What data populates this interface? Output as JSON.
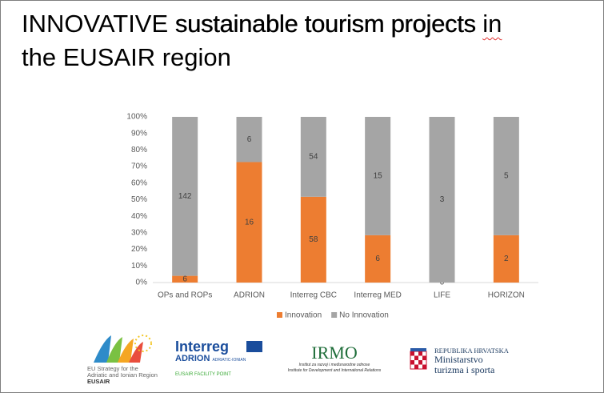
{
  "header": {
    "title_parts": [
      "INNOVATIVE",
      "sustainable tourism projects",
      "in",
      "the EUSAIR region"
    ]
  },
  "chart_data": {
    "type": "bar",
    "stacked": "percent",
    "categories": [
      "OPs and ROPs",
      "ADRION",
      "Interreg CBC",
      "Interreg MED",
      "LIFE",
      "HORIZON"
    ],
    "series": [
      {
        "name": "Innovation",
        "color": "#ed7d31",
        "values": [
          6,
          16,
          58,
          6,
          0,
          2
        ]
      },
      {
        "name": "No Innovation",
        "color": "#a5a5a5",
        "values": [
          142,
          6,
          54,
          15,
          3,
          5
        ]
      }
    ],
    "ylim": [
      0,
      100
    ],
    "yticks": [
      {
        "value": 0,
        "label": "0%"
      },
      {
        "value": 10,
        "label": "10%"
      },
      {
        "value": 20,
        "label": "20%"
      },
      {
        "value": 30,
        "label": "30%"
      },
      {
        "value": 40,
        "label": "40%"
      },
      {
        "value": 50,
        "label": "50%"
      },
      {
        "value": 60,
        "label": "60%"
      },
      {
        "value": 70,
        "label": "70%"
      },
      {
        "value": 80,
        "label": "80%"
      },
      {
        "value": 90,
        "label": "90%"
      },
      {
        "value": 100,
        "label": "100%"
      }
    ],
    "grid": false,
    "legend": "bottom"
  },
  "logos": {
    "eusair": [
      "EU Strategy for the",
      "Adriatic and Ionian Region",
      "EUSAIR"
    ],
    "interreg": [
      "Interreg",
      "ADRION",
      "ADRIATIC-IONIAN",
      "EUSAIR FACILITY POINT"
    ],
    "irmo": [
      "IRMO",
      "Institut za razvoj i međunarodne odnose",
      "Institute for Development and International Relations"
    ],
    "croatia": [
      "REPUBLIKA HRVATSKA",
      "Ministarstvo",
      "turizma i sporta"
    ]
  }
}
